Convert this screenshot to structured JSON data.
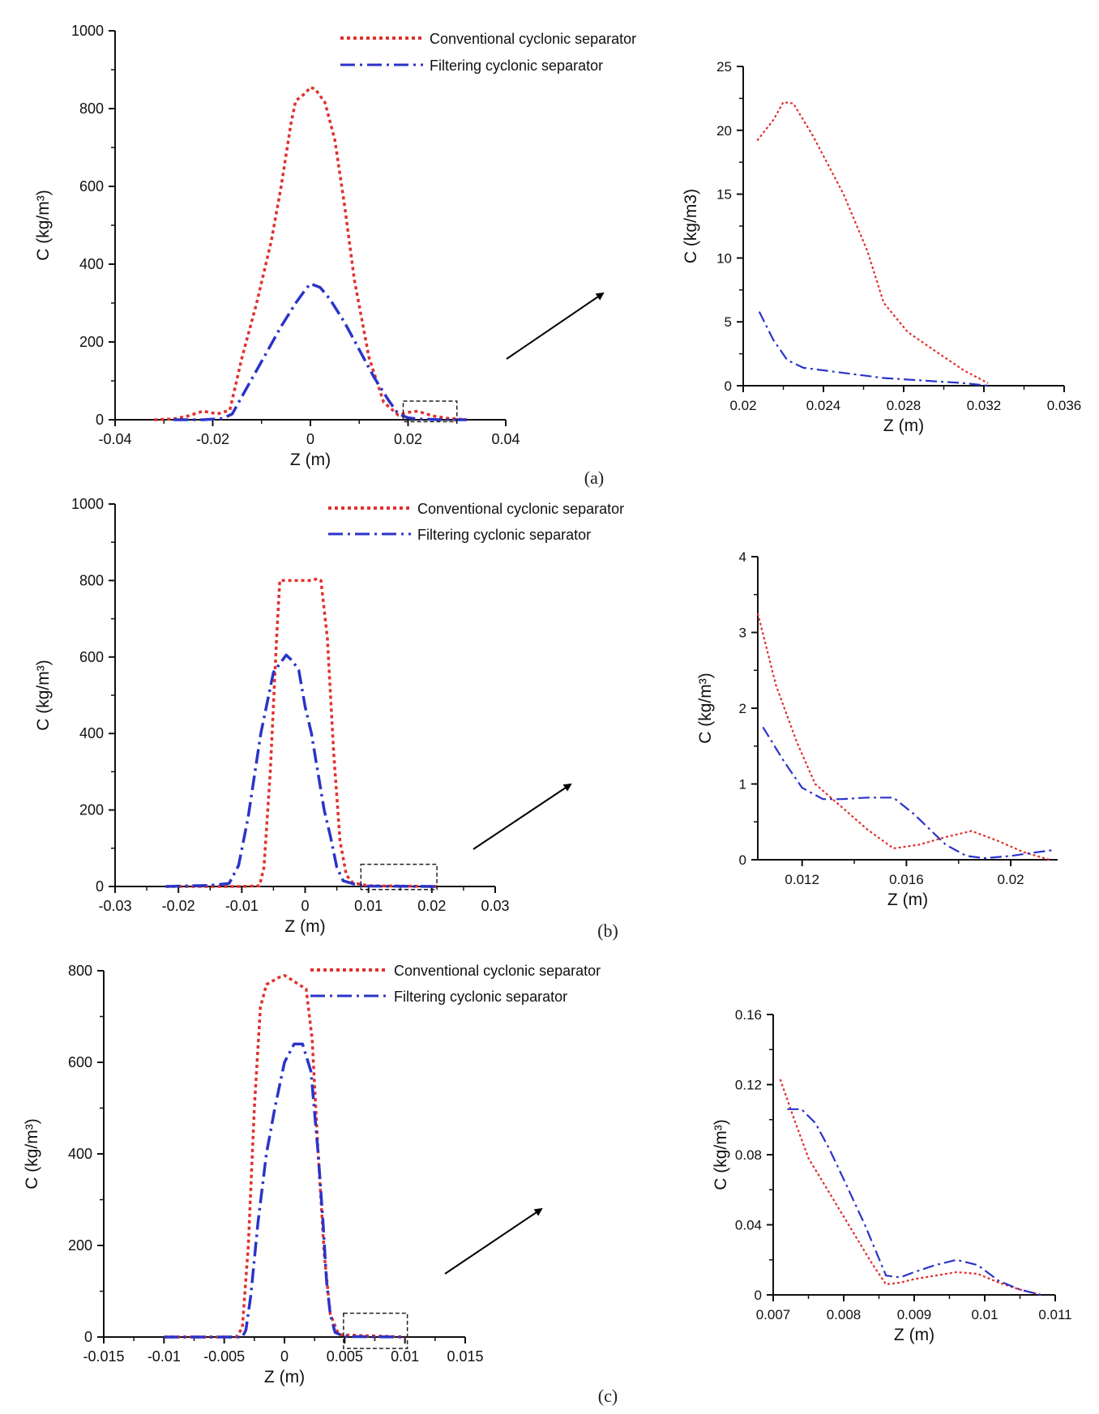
{
  "colors": {
    "conventional": "#e0312d",
    "filtering": "#2b34c8",
    "axis": "#111111"
  },
  "legend": {
    "conventional": "Conventional cyclonic separator",
    "filtering": "Filtering cyclonic separator"
  },
  "chart_data": [
    {
      "id": "a-main",
      "type": "line",
      "panel": "(a)",
      "xlabel": "Z (m)",
      "ylabel": "C (kg/m³)",
      "xlim": [
        -0.04,
        0.04
      ],
      "ylim": [
        0,
        1000
      ],
      "xticks": [
        -0.04,
        -0.02,
        0,
        0.02,
        0.04
      ],
      "xtick_labels": [
        "-0.04",
        "-0.02",
        "0",
        "0.02",
        "0.04"
      ],
      "yticks": [
        0,
        200,
        400,
        600,
        800,
        1000
      ],
      "ytick_labels": [
        "0",
        "200",
        "400",
        "600",
        "800",
        "1000"
      ],
      "zoom_box": {
        "x": [
          0.019,
          0.03
        ],
        "y": [
          -5,
          48
        ]
      },
      "series": [
        {
          "name": "Conventional cyclonic separator",
          "style": "dotted",
          "x": [
            -0.032,
            -0.028,
            -0.025,
            -0.022,
            -0.019,
            -0.0165,
            -0.014,
            -0.011,
            -0.008,
            -0.006,
            -0.004,
            -0.003,
            -0.001,
            0,
            0.001,
            0.003,
            0.005,
            0.007,
            0.009,
            0.012,
            0.015,
            0.018,
            0.02,
            0.022,
            0.025,
            0.028,
            0.032
          ],
          "y": [
            0,
            2,
            10,
            22,
            15,
            25,
            160,
            300,
            460,
            600,
            760,
            820,
            840,
            855,
            850,
            815,
            720,
            550,
            360,
            160,
            45,
            12,
            19,
            22,
            10,
            4,
            0
          ]
        },
        {
          "name": "Filtering cyclonic separator",
          "style": "dashdot",
          "x": [
            -0.028,
            -0.022,
            -0.018,
            -0.016,
            -0.014,
            -0.01,
            -0.006,
            -0.003,
            -0.001,
            0,
            0.002,
            0.004,
            0.007,
            0.01,
            0.013,
            0.016,
            0.018,
            0.02,
            0.022,
            0.026,
            0.03,
            0.032
          ],
          "y": [
            0,
            0,
            3,
            15,
            60,
            150,
            240,
            300,
            335,
            350,
            340,
            310,
            250,
            180,
            110,
            50,
            15,
            5,
            2,
            0.5,
            0,
            0
          ]
        }
      ]
    },
    {
      "id": "a-zoom",
      "type": "line",
      "xlabel": "Z (m)",
      "ylabel": "C (kg/m3)",
      "xlim": [
        0.02,
        0.036
      ],
      "ylim": [
        0,
        25
      ],
      "xticks": [
        0.02,
        0.024,
        0.028,
        0.032,
        0.036
      ],
      "xtick_labels": [
        "0.02",
        "0.024",
        "0.028",
        "0.032",
        "0.036"
      ],
      "yticks": [
        0,
        5,
        10,
        15,
        20,
        25
      ],
      "ytick_labels": [
        "0",
        "5",
        "10",
        "15",
        "20",
        "25"
      ],
      "series": [
        {
          "name": "Conventional cyclonic separator",
          "style": "dotted",
          "x": [
            0.0207,
            0.0215,
            0.022,
            0.0225,
            0.0235,
            0.025,
            0.0262,
            0.027,
            0.0282,
            0.0295,
            0.031,
            0.0322
          ],
          "y": [
            19.2,
            20.8,
            22.2,
            22.1,
            19.5,
            15,
            10.5,
            6.5,
            4.2,
            2.8,
            1.2,
            0.2
          ]
        },
        {
          "name": "Filtering cyclonic separator",
          "style": "dashdot",
          "x": [
            0.0208,
            0.0215,
            0.0222,
            0.023,
            0.025,
            0.027,
            0.029,
            0.031,
            0.0322
          ],
          "y": [
            5.8,
            3.6,
            2.0,
            1.4,
            1.0,
            0.6,
            0.4,
            0.2,
            0
          ]
        }
      ]
    },
    {
      "id": "b-main",
      "type": "line",
      "panel": "(b)",
      "xlabel": "Z (m)",
      "ylabel": "C (kg/m³)",
      "xlim": [
        -0.03,
        0.03
      ],
      "ylim": [
        0,
        1000
      ],
      "xticks": [
        -0.03,
        -0.02,
        -0.01,
        0,
        0.01,
        0.02,
        0.03
      ],
      "xtick_labels": [
        "-0.03",
        "-0.02",
        "-0.01",
        "0",
        "0.01",
        "0.02",
        "0.03"
      ],
      "yticks": [
        0,
        200,
        400,
        600,
        800,
        1000
      ],
      "ytick_labels": [
        "0",
        "200",
        "400",
        "600",
        "800",
        "1000"
      ],
      "zoom_box": {
        "x": [
          0.0088,
          0.0208
        ],
        "y": [
          -8,
          58
        ]
      },
      "series": [
        {
          "name": "Conventional cyclonic separator",
          "style": "dotted",
          "x": [
            -0.022,
            -0.01,
            -0.0072,
            -0.0065,
            -0.0055,
            -0.0045,
            -0.004,
            -0.003,
            -0.001,
            0.001,
            0.002,
            0.0025,
            0.0035,
            0.0045,
            0.0055,
            0.0065,
            0.0075,
            0.01,
            0.021
          ],
          "y": [
            0,
            0,
            2,
            50,
            300,
            650,
            800,
            800,
            800,
            800,
            805,
            800,
            650,
            350,
            120,
            30,
            10,
            2,
            0
          ]
        },
        {
          "name": "Filtering cyclonic separator",
          "style": "dashdot",
          "x": [
            -0.022,
            -0.015,
            -0.012,
            -0.0105,
            -0.009,
            -0.007,
            -0.005,
            -0.003,
            -0.002,
            -0.001,
            0,
            0.001,
            0.002,
            0.003,
            0.004,
            0.005,
            0.006,
            0.008,
            0.01,
            0.021
          ],
          "y": [
            0,
            3,
            8,
            55,
            180,
            400,
            560,
            605,
            590,
            565,
            470,
            400,
            300,
            200,
            130,
            50,
            15,
            5,
            1,
            0
          ]
        }
      ]
    },
    {
      "id": "b-zoom",
      "type": "line",
      "xlabel": "Z (m)",
      "ylabel": "C (kg/m³)",
      "xlim": [
        0.0103,
        0.0218
      ],
      "ylim": [
        0,
        4
      ],
      "xticks": [
        0.012,
        0.016,
        0.02
      ],
      "xtick_labels": [
        "0.012",
        "0.016",
        "0.02"
      ],
      "yticks": [
        0,
        1,
        2,
        3,
        4
      ],
      "ytick_labels": [
        "0",
        "1",
        "2",
        "3",
        "4"
      ],
      "series": [
        {
          "name": "Conventional cyclonic separator",
          "style": "dotted",
          "x": [
            0.0103,
            0.011,
            0.0118,
            0.0125,
            0.0135,
            0.0145,
            0.0155,
            0.0165,
            0.0175,
            0.0185,
            0.0195,
            0.0205,
            0.0215
          ],
          "y": [
            3.25,
            2.3,
            1.55,
            1.0,
            0.7,
            0.4,
            0.15,
            0.2,
            0.3,
            0.38,
            0.25,
            0.1,
            0.0
          ]
        },
        {
          "name": "Filtering cyclonic separator",
          "style": "dashdot",
          "x": [
            0.0105,
            0.0113,
            0.012,
            0.0128,
            0.0135,
            0.0145,
            0.0155,
            0.0163,
            0.0175,
            0.0183,
            0.019,
            0.02,
            0.021,
            0.0217
          ],
          "y": [
            1.75,
            1.3,
            0.95,
            0.8,
            0.8,
            0.82,
            0.82,
            0.6,
            0.2,
            0.05,
            0.02,
            0.05,
            0.1,
            0.13
          ]
        }
      ]
    },
    {
      "id": "c-main",
      "type": "line",
      "panel": "(c)",
      "xlabel": "Z (m)",
      "ylabel": "C (kg/m³)",
      "xlim": [
        -0.015,
        0.015
      ],
      "ylim": [
        0,
        800
      ],
      "xticks": [
        -0.015,
        -0.01,
        -0.005,
        0,
        0.005,
        0.01,
        0.015
      ],
      "xtick_labels": [
        "-0.015",
        "-0.01",
        "-0.005",
        "0",
        "0.005",
        "0.01",
        "0.015"
      ],
      "yticks": [
        0,
        200,
        400,
        600,
        800
      ],
      "ytick_labels": [
        "0",
        "200",
        "400",
        "600",
        "800"
      ],
      "zoom_box": {
        "x": [
          0.0049,
          0.0102
        ],
        "y": [
          -25,
          52
        ]
      },
      "series": [
        {
          "name": "Conventional cyclonic separator",
          "style": "dotted",
          "x": [
            -0.01,
            -0.004,
            -0.0035,
            -0.003,
            -0.0025,
            -0.002,
            -0.0015,
            -0.0005,
            0,
            0.0005,
            0.0012,
            0.0018,
            0.0023,
            0.0028,
            0.0033,
            0.0038,
            0.0045,
            0.01
          ],
          "y": [
            0,
            0,
            20,
            200,
            500,
            720,
            770,
            785,
            790,
            782,
            770,
            760,
            650,
            400,
            180,
            50,
            5,
            0
          ]
        },
        {
          "name": "Filtering cyclonic separator",
          "style": "dashdot",
          "x": [
            -0.01,
            -0.0035,
            -0.0032,
            -0.0028,
            -0.0022,
            -0.0015,
            -0.0008,
            0,
            0.0008,
            0.0015,
            0.0022,
            0.0028,
            0.0032,
            0.0035,
            0.0038,
            0.0042,
            0.005,
            0.01
          ],
          "y": [
            0,
            0,
            15,
            90,
            250,
            400,
            500,
            600,
            640,
            640,
            580,
            400,
            250,
            120,
            50,
            10,
            1,
            0
          ]
        }
      ]
    },
    {
      "id": "c-zoom",
      "type": "line",
      "xlabel": "Z (m)",
      "ylabel": "C (kg/m³)",
      "xlim": [
        0.007,
        0.011
      ],
      "ylim": [
        0,
        0.16
      ],
      "xticks": [
        0.007,
        0.008,
        0.009,
        0.01,
        0.011
      ],
      "xtick_labels": [
        "0.007",
        "0.008",
        "0.009",
        "0.01",
        "0.011"
      ],
      "yticks": [
        0,
        0.04,
        0.08,
        0.12,
        0.16
      ],
      "ytick_labels": [
        "0",
        "0.04",
        "0.08",
        "0.12",
        "0.16"
      ],
      "series": [
        {
          "name": "Conventional cyclonic separator",
          "style": "dotted",
          "x": [
            0.0071,
            0.0073,
            0.0075,
            0.0078,
            0.0081,
            0.0084,
            0.0086,
            0.0088,
            0.009,
            0.0093,
            0.0096,
            0.0099,
            0.0102,
            0.0105,
            0.0108
          ],
          "y": [
            0.123,
            0.1,
            0.078,
            0.058,
            0.038,
            0.018,
            0.006,
            0.007,
            0.009,
            0.011,
            0.013,
            0.012,
            0.007,
            0.003,
            0.0
          ]
        },
        {
          "name": "Filtering cyclonic separator",
          "style": "dashdot",
          "x": [
            0.0072,
            0.0074,
            0.0076,
            0.0078,
            0.008,
            0.0083,
            0.0086,
            0.0088,
            0.009,
            0.0093,
            0.0096,
            0.0099,
            0.0102,
            0.0105,
            0.0108
          ],
          "y": [
            0.106,
            0.106,
            0.098,
            0.083,
            0.066,
            0.04,
            0.011,
            0.01,
            0.013,
            0.017,
            0.02,
            0.017,
            0.008,
            0.003,
            0.0
          ]
        }
      ]
    }
  ]
}
